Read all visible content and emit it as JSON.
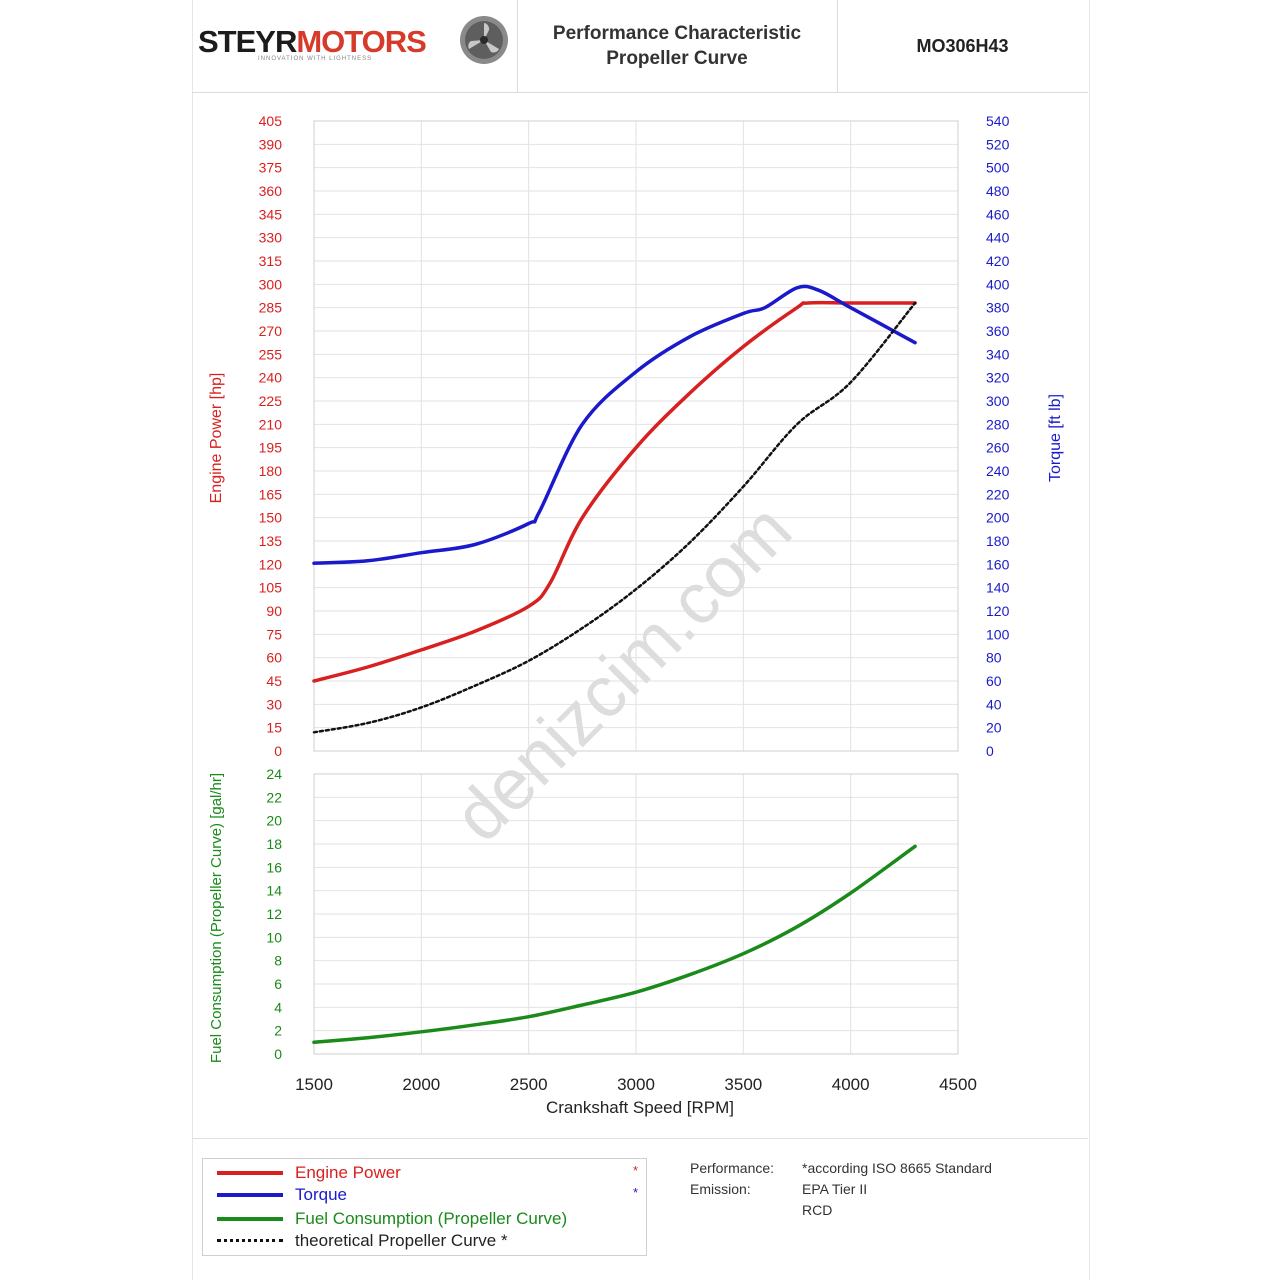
{
  "header": {
    "logo_part1": "STEYR",
    "logo_part2": "MOTORS",
    "logo_tagline": "INNOVATION WITH LIGHTNESS",
    "title_line1": "Performance Characteristic",
    "title_line2": "Propeller Curve",
    "model": "MO306H43"
  },
  "colors": {
    "engine_power": "#d92020",
    "torque": "#1a1acc",
    "fuel": "#1a8a1a",
    "propeller": "#111111",
    "grid": "#e2e2e2"
  },
  "watermark": "denizcim.com",
  "chart_data": [
    {
      "type": "line",
      "title": "",
      "xlabel": "Crankshaft Speed [RPM]",
      "ylabel": "Engine Power [hp]",
      "y2label": "Torque [ft lb]",
      "xlim": [
        1500,
        4500
      ],
      "ylim": [
        0,
        405
      ],
      "y2lim": [
        0,
        540
      ],
      "x_ticks": [
        1500,
        2000,
        2500,
        3000,
        3500,
        4000,
        4500
      ],
      "y_ticks": [
        0,
        15,
        30,
        45,
        60,
        75,
        90,
        105,
        120,
        135,
        150,
        165,
        180,
        195,
        210,
        225,
        240,
        255,
        270,
        285,
        300,
        315,
        330,
        345,
        360,
        375,
        390,
        405
      ],
      "y2_ticks": [
        0,
        20,
        40,
        60,
        80,
        100,
        120,
        140,
        160,
        180,
        200,
        220,
        240,
        260,
        280,
        300,
        320,
        340,
        360,
        380,
        400,
        420,
        440,
        460,
        480,
        500,
        520,
        540
      ],
      "grid": true,
      "series": [
        {
          "name": "Engine Power",
          "axis": "left",
          "x": [
            1500,
            1750,
            2000,
            2250,
            2500,
            2600,
            2750,
            3000,
            3250,
            3500,
            3750,
            3800,
            4000,
            4100,
            4300
          ],
          "y": [
            45,
            54,
            65,
            77,
            93,
            108,
            150,
            195,
            230,
            260,
            285,
            288,
            288,
            288,
            288
          ]
        },
        {
          "name": "Torque",
          "axis": "right",
          "x": [
            1500,
            1750,
            2000,
            2250,
            2500,
            2550,
            2750,
            3000,
            3250,
            3500,
            3600,
            3750,
            3850,
            4000,
            4300
          ],
          "y": [
            161,
            163,
            170,
            177,
            195,
            205,
            280,
            325,
            355,
            375,
            380,
            397,
            395,
            380,
            350
          ]
        },
        {
          "name": "theoretical Propeller Curve",
          "axis": "left",
          "x": [
            1500,
            1750,
            2000,
            2250,
            2500,
            2750,
            3000,
            3250,
            3500,
            3750,
            4000,
            4300
          ],
          "y": [
            12,
            18,
            28,
            42,
            58,
            79,
            104,
            134,
            170,
            210,
            237,
            288
          ]
        }
      ]
    },
    {
      "type": "line",
      "title": "",
      "xlabel": "Crankshaft Speed [RPM]",
      "ylabel": "Fuel Consumption (Propeller Curve) [gal/hr]",
      "xlim": [
        1500,
        4500
      ],
      "ylim": [
        0,
        24
      ],
      "y_ticks": [
        0,
        2,
        4,
        6,
        8,
        10,
        12,
        14,
        16,
        18,
        20,
        22,
        24
      ],
      "grid": true,
      "series": [
        {
          "name": "Fuel Consumption (Propeller Curve)",
          "x": [
            1500,
            1750,
            2000,
            2250,
            2500,
            2750,
            3000,
            3250,
            3500,
            3750,
            4000,
            4300
          ],
          "y": [
            1,
            1.4,
            1.9,
            2.5,
            3.2,
            4.2,
            5.3,
            6.8,
            8.6,
            10.9,
            13.8,
            17.8
          ]
        }
      ]
    }
  ],
  "legend": {
    "items": [
      {
        "label": "Engine Power",
        "mark": "*"
      },
      {
        "label": "Torque",
        "mark": "*"
      },
      {
        "label": "Fuel Consumption (Propeller Curve)",
        "mark": ""
      },
      {
        "label": "theoretical Propeller Curve *",
        "mark": ""
      }
    ]
  },
  "footnotes": {
    "performance_key": "Performance:",
    "performance_val": "*according ISO 8665 Standard",
    "emission_key": "Emission:",
    "emission_val1": "EPA Tier II",
    "emission_val2": "RCD"
  }
}
